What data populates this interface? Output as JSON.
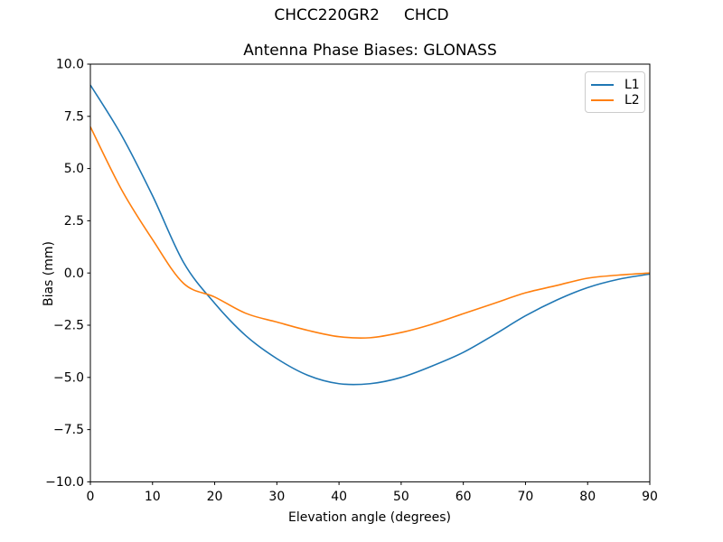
{
  "figure": {
    "suptitle": "CHCC220GR2     CHCD",
    "background": "#ffffff"
  },
  "chart_data": {
    "type": "line",
    "title": "Antenna Phase Biases: GLONASS",
    "xlabel": "Elevation angle (degrees)",
    "ylabel": "Bias (mm)",
    "xlim": [
      0,
      90
    ],
    "ylim": [
      -10,
      10
    ],
    "grid": false,
    "axis_color": "#000000",
    "legend": {
      "position": "upper right"
    },
    "x_ticks": [
      {
        "v": 0,
        "label": "0"
      },
      {
        "v": 10,
        "label": "10"
      },
      {
        "v": 20,
        "label": "20"
      },
      {
        "v": 30,
        "label": "30"
      },
      {
        "v": 40,
        "label": "40"
      },
      {
        "v": 50,
        "label": "50"
      },
      {
        "v": 60,
        "label": "60"
      },
      {
        "v": 70,
        "label": "70"
      },
      {
        "v": 80,
        "label": "80"
      },
      {
        "v": 90,
        "label": "90"
      }
    ],
    "y_ticks": [
      {
        "v": 10,
        "label": "10.0"
      },
      {
        "v": 7.5,
        "label": "7.5"
      },
      {
        "v": 5,
        "label": "5.0"
      },
      {
        "v": 2.5,
        "label": "2.5"
      },
      {
        "v": 0,
        "label": "0.0"
      },
      {
        "v": -2.5,
        "label": "−2.5"
      },
      {
        "v": -5,
        "label": "−5.0"
      },
      {
        "v": -7.5,
        "label": "−7.5"
      },
      {
        "v": -10,
        "label": "−10.0"
      }
    ],
    "x": [
      0,
      5,
      10,
      15,
      20,
      25,
      30,
      35,
      40,
      45,
      50,
      55,
      60,
      65,
      70,
      75,
      80,
      85,
      90
    ],
    "series": [
      {
        "name": "L1",
        "color": "#1f77b4",
        "values": [
          9.0,
          6.6,
          3.7,
          0.5,
          -1.45,
          -3.0,
          -4.1,
          -4.9,
          -5.3,
          -5.3,
          -5.0,
          -4.45,
          -3.8,
          -2.95,
          -2.05,
          -1.3,
          -0.7,
          -0.3,
          -0.05
        ]
      },
      {
        "name": "L2",
        "color": "#ff7f0e",
        "values": [
          7.0,
          4.0,
          1.6,
          -0.5,
          -1.15,
          -1.93,
          -2.35,
          -2.75,
          -3.05,
          -3.1,
          -2.85,
          -2.45,
          -1.95,
          -1.45,
          -0.95,
          -0.6,
          -0.25,
          -0.1,
          0.0
        ]
      }
    ]
  }
}
